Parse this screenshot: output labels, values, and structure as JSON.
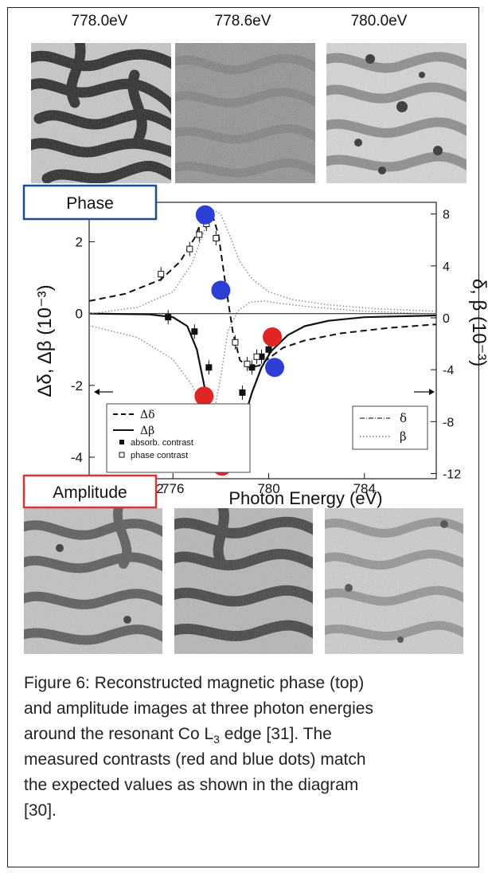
{
  "top_row": {
    "energies": [
      "778.0eV",
      "778.6eV",
      "780.0eV"
    ]
  },
  "boxes": {
    "phase_label": "Phase",
    "phase_color": "#1f4e8c",
    "amplitude_label": "Amplitude",
    "amplitude_color": "#d0393a"
  },
  "chart_data": {
    "type": "line",
    "xlabel": "Photon Energy (eV)",
    "ylabel_left": "Δδ, Δβ (10⁻³)",
    "ylabel_right": "δ, β (10⁻³)",
    "xlim": [
      772.5,
      787.0
    ],
    "ylim_left": [
      -4.6,
      3.1
    ],
    "ylim_right": [
      -12.4,
      8.9
    ],
    "x_ticks": [
      776,
      780,
      784
    ],
    "x_tick_labels": [
      "776",
      "780",
      "784"
    ],
    "x_tick_label_partial": "2",
    "y_left_ticks": [
      -4,
      -2,
      0,
      2
    ],
    "y_left_tick_labels": [
      "-4",
      "-2",
      "0",
      "2"
    ],
    "y_right_ticks": [
      -12,
      -8,
      -4,
      0,
      4,
      8
    ],
    "y_right_tick_labels": [
      "-12",
      "-8",
      "-4",
      "0",
      "4",
      "8"
    ],
    "legend_left": {
      "entries": [
        "Δδ",
        "Δβ",
        "absorb. contrast",
        "phase contrast"
      ],
      "placement": "bottom-left"
    },
    "legend_right": {
      "entries": [
        "δ",
        "β"
      ],
      "placement": "bottom-right"
    },
    "series": [
      {
        "name": "Δδ",
        "axis": "left",
        "style": "dashed",
        "x": [
          772.5,
          774.0,
          775.5,
          776.3,
          776.9,
          777.3,
          777.6,
          777.9,
          778.2,
          778.5,
          778.8,
          779.2,
          779.6,
          780.0,
          780.6,
          781.5,
          783.0,
          785.0,
          787.0
        ],
        "y": [
          0.35,
          0.55,
          0.95,
          1.45,
          2.1,
          2.75,
          2.85,
          2.2,
          0.8,
          -0.5,
          -1.3,
          -1.5,
          -1.45,
          -1.25,
          -0.95,
          -0.75,
          -0.55,
          -0.4,
          -0.3
        ]
      },
      {
        "name": "Δβ",
        "axis": "left",
        "style": "solid",
        "x": [
          772.5,
          775.0,
          776.0,
          776.6,
          777.0,
          777.4,
          777.7,
          778.0,
          778.3,
          778.6,
          778.9,
          779.3,
          779.7,
          780.1,
          780.8,
          781.5,
          782.5,
          784.0,
          787.0
        ],
        "y": [
          0.0,
          -0.02,
          -0.1,
          -0.35,
          -1.0,
          -2.3,
          -3.3,
          -4.2,
          -4.35,
          -3.9,
          -3.1,
          -2.2,
          -1.5,
          -1.05,
          -0.6,
          -0.35,
          -0.2,
          -0.1,
          -0.05
        ]
      },
      {
        "name": "δ",
        "axis": "right",
        "style": "dotted",
        "x": [
          772.5,
          774.5,
          776.0,
          776.8,
          777.3,
          777.7,
          778.0,
          778.3,
          778.7,
          779.2,
          779.8,
          780.5,
          782.0,
          784.0,
          787.0
        ],
        "y": [
          -0.6,
          -1.5,
          -3.2,
          -5.2,
          -7.0,
          -7.4,
          -4.5,
          -1.0,
          0.5,
          1.2,
          1.3,
          1.1,
          0.8,
          0.5,
          0.3
        ]
      },
      {
        "name": "β",
        "axis": "right",
        "style": "dotted",
        "x": [
          772.5,
          774.5,
          776.0,
          776.8,
          777.3,
          777.7,
          778.0,
          778.4,
          778.8,
          779.3,
          780.0,
          781.0,
          782.5,
          784.5,
          787.0
        ],
        "y": [
          0.3,
          0.8,
          2.0,
          4.2,
          6.7,
          8.3,
          8.0,
          6.2,
          4.3,
          3.0,
          2.0,
          1.4,
          1.0,
          0.7,
          0.5
        ]
      },
      {
        "name": "absorb. contrast",
        "axis": "left",
        "style": "filled-square",
        "x": [
          775.8,
          776.9,
          777.5,
          778.0,
          778.3,
          778.9,
          779.3,
          779.7,
          780.0
        ],
        "y": [
          -0.1,
          -0.5,
          -1.5,
          -3.2,
          -4.2,
          -2.2,
          -1.5,
          -1.2,
          -1.0
        ]
      },
      {
        "name": "phase contrast",
        "axis": "left",
        "style": "open-square",
        "x": [
          775.5,
          776.7,
          777.1,
          777.4,
          777.8,
          778.1,
          778.6,
          779.1,
          779.5
        ],
        "y": [
          1.1,
          1.8,
          2.2,
          2.5,
          2.1,
          0.7,
          -0.8,
          -1.4,
          -1.2
        ]
      }
    ],
    "markers": [
      {
        "color": "#2b3fd6",
        "axis": "left",
        "x": 777.35,
        "y": 2.75
      },
      {
        "color": "#2b3fd6",
        "axis": "left",
        "x": 778.0,
        "y": 0.65
      },
      {
        "color": "#2b3fd6",
        "axis": "left",
        "x": 780.25,
        "y": -1.5
      },
      {
        "color": "#e02525",
        "axis": "left",
        "x": 777.3,
        "y": -2.3
      },
      {
        "color": "#e02525",
        "axis": "left",
        "x": 778.05,
        "y": -4.25
      },
      {
        "color": "#e02525",
        "axis": "left",
        "x": 780.15,
        "y": -0.65
      }
    ]
  },
  "caption": {
    "line1": "Figure 6: Reconstructed magnetic phase (top)",
    "line2": "and amplitude images at three photon energies",
    "line3a": "around the resonant Co L",
    "line3sub": "3",
    "line3b": " edge  [31]. The",
    "line4": "measured contrasts (red and blue dots) match",
    "line5": "the expected values as shown in the diagram",
    "line6": "[30]."
  }
}
